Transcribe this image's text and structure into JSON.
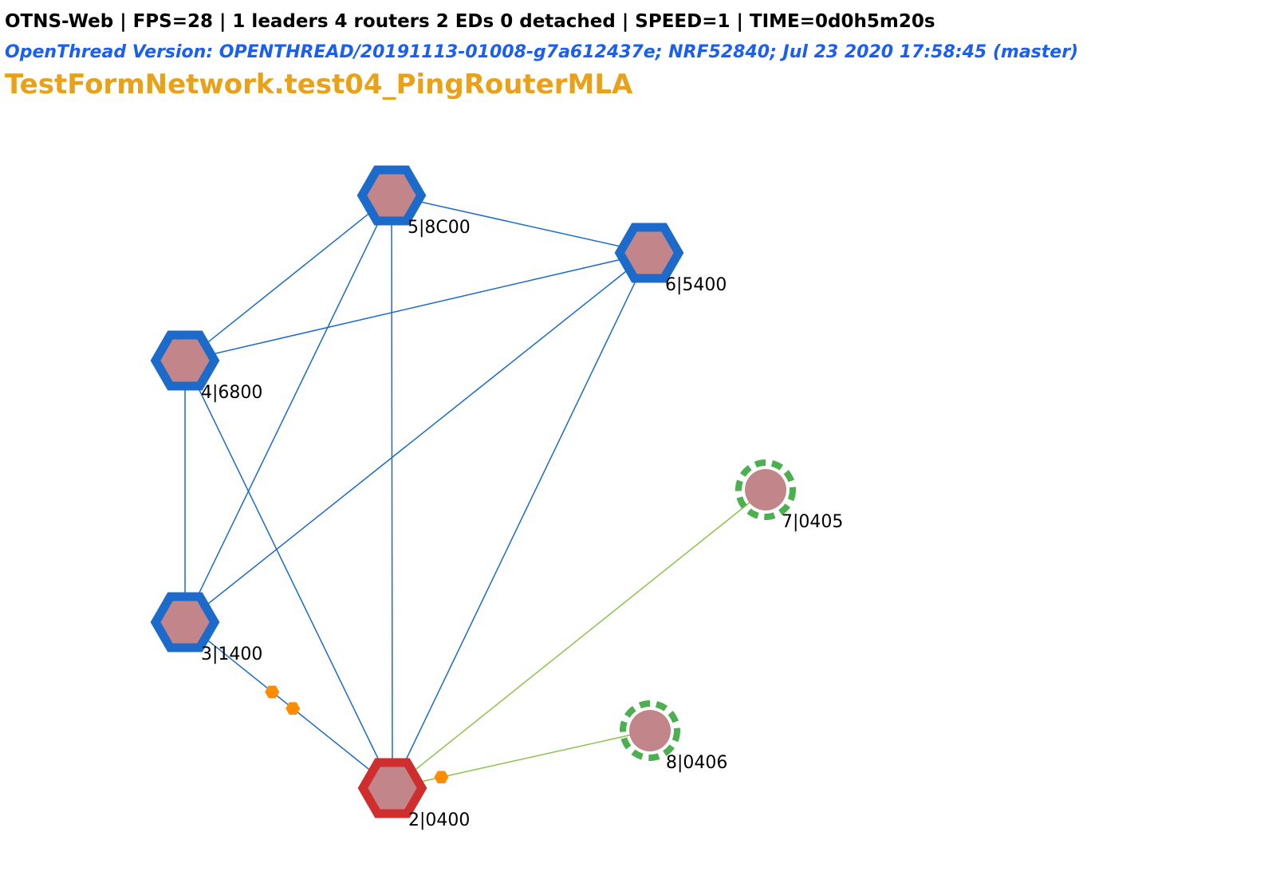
{
  "header": {
    "status_text": "OTNS-Web | FPS=28 | 1 leaders 4 routers 2 EDs 0 detached | SPEED=1 | TIME=0d0h5m20s",
    "version_text": "OpenThread Version: OPENTHREAD/20191113-01008-g7a612437e; NRF52840; Jul 23 2020 17:58:45 (master)",
    "test_title": "TestFormNetwork.test04_PingRouterMLA"
  },
  "colors": {
    "status_text": "#000000",
    "version_text": "#1a5ff0",
    "test_title": "#e9a11a",
    "router_border": "#1c6ac9",
    "leader_border": "#cf2e2e",
    "node_fill": "#c2868a",
    "end_device_border": "#4caf50",
    "router_link": "#1c6ac9",
    "child_link": "#8bc34a",
    "message_packet": "#ff8c00"
  },
  "nodes": [
    {
      "id": 2,
      "label": "2|0400",
      "role": "leader"
    },
    {
      "id": 3,
      "label": "3|1400",
      "role": "router"
    },
    {
      "id": 4,
      "label": "4|6800",
      "role": "router"
    },
    {
      "id": 5,
      "label": "5|8C00",
      "role": "router"
    },
    {
      "id": 6,
      "label": "6|5400",
      "role": "router"
    },
    {
      "id": 7,
      "label": "7|0405",
      "role": "end-device"
    },
    {
      "id": 8,
      "label": "8|0406",
      "role": "end-device"
    }
  ],
  "links": [
    {
      "from": 5,
      "to": 6,
      "type": "router"
    },
    {
      "from": 5,
      "to": 4,
      "type": "router"
    },
    {
      "from": 5,
      "to": 3,
      "type": "router"
    },
    {
      "from": 5,
      "to": 2,
      "type": "router"
    },
    {
      "from": 6,
      "to": 4,
      "type": "router"
    },
    {
      "from": 6,
      "to": 3,
      "type": "router"
    },
    {
      "from": 6,
      "to": 2,
      "type": "router"
    },
    {
      "from": 4,
      "to": 3,
      "type": "router"
    },
    {
      "from": 4,
      "to": 2,
      "type": "router"
    },
    {
      "from": 3,
      "to": 2,
      "type": "router"
    },
    {
      "from": 2,
      "to": 7,
      "type": "child"
    },
    {
      "from": 2,
      "to": 8,
      "type": "child"
    }
  ],
  "messages": [
    {
      "from": 3,
      "to": 2,
      "progress": 0.42
    },
    {
      "from": 3,
      "to": 2,
      "progress": 0.52
    },
    {
      "from": 2,
      "to": 8,
      "progress": 0.19
    }
  ]
}
